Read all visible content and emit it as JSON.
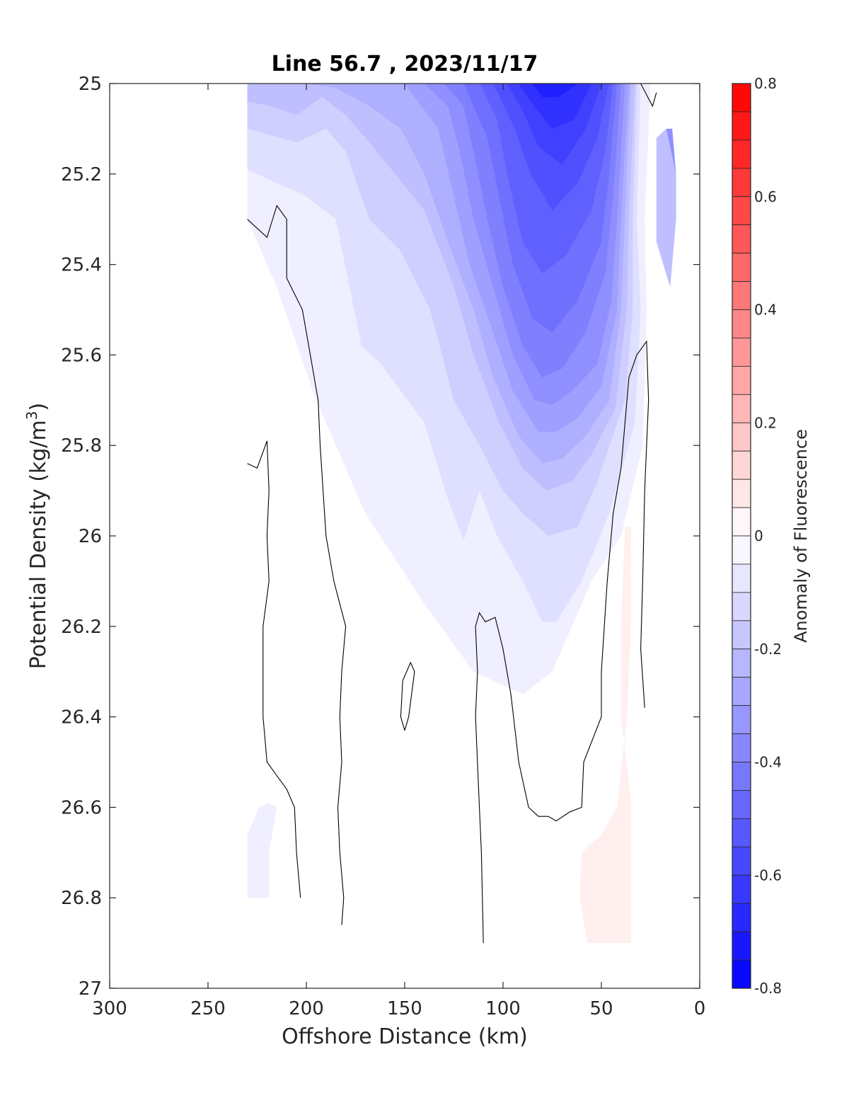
{
  "chart_data": {
    "type": "contour",
    "title": "Line 56.7 , 2023/11/17",
    "xlabel": "Offshore Distance (km)",
    "ylabel": "Potential Density (kg/m",
    "ylabel_sup": "3",
    "ylabel_close": ")",
    "xlim": [
      300,
      0
    ],
    "x_reversed": true,
    "ylim": [
      25,
      27
    ],
    "y_reversed": true,
    "x_ticks": [
      "300",
      "250",
      "200",
      "150",
      "100",
      "50",
      "0"
    ],
    "x_tick_values": [
      300,
      250,
      200,
      150,
      100,
      50,
      0
    ],
    "y_ticks": [
      "25",
      "25.2",
      "25.4",
      "25.6",
      "25.8",
      "26",
      "26.2",
      "26.4",
      "26.6",
      "26.8",
      "27"
    ],
    "y_tick_values": [
      25,
      25.2,
      25.4,
      25.6,
      25.8,
      26,
      26.2,
      26.4,
      26.6,
      26.8,
      27
    ],
    "colorbar": {
      "label": "Anomaly of Fluorescence",
      "range": [
        -0.8,
        0.8
      ],
      "step": 0.05,
      "tick_labels": [
        "0.8",
        "0.6",
        "0.4",
        "0.2",
        "0",
        "-0.2",
        "-0.4",
        "-0.6",
        "-0.8"
      ],
      "tick_values": [
        0.8,
        0.6,
        0.4,
        0.2,
        0,
        -0.2,
        -0.4,
        -0.6,
        -0.8
      ],
      "low_color": "#0000ff",
      "mid_color": "#ffffff",
      "high_color": "#ff0000"
    },
    "filled_regions": [
      {
        "level": -0.05,
        "points": [
          [
            230,
            25
          ],
          [
            25,
            25
          ],
          [
            28,
            25.3
          ],
          [
            27,
            25.5
          ],
          [
            29,
            25.8
          ],
          [
            40,
            26.0
          ],
          [
            55,
            26.1
          ],
          [
            75,
            26.3
          ],
          [
            90,
            26.35
          ],
          [
            115,
            26.3
          ],
          [
            140,
            26.15
          ],
          [
            170,
            25.95
          ],
          [
            195,
            25.7
          ],
          [
            215,
            25.45
          ],
          [
            230,
            25.3
          ]
        ]
      },
      {
        "level": -0.1,
        "points": [
          [
            230,
            25
          ],
          [
            30,
            25
          ],
          [
            32,
            25.3
          ],
          [
            30,
            25.5
          ],
          [
            33,
            25.75
          ],
          [
            46,
            25.95
          ],
          [
            60,
            26.1
          ],
          [
            73,
            26.19
          ],
          [
            80,
            26.19
          ],
          [
            90,
            26.1
          ],
          [
            103,
            26.0
          ],
          [
            112,
            25.9
          ],
          [
            120,
            26.01
          ],
          [
            128,
            25.92
          ],
          [
            140,
            25.75
          ],
          [
            162,
            25.62
          ],
          [
            172,
            25.58
          ],
          [
            185,
            25.3
          ],
          [
            200,
            25.25
          ],
          [
            220,
            25.21
          ],
          [
            230,
            25.19
          ]
        ]
      },
      {
        "level": -0.15,
        "points": [
          [
            230,
            25
          ],
          [
            32,
            25
          ],
          [
            34,
            25.3
          ],
          [
            34,
            25.5
          ],
          [
            38,
            25.7
          ],
          [
            52,
            25.88
          ],
          [
            62,
            25.98
          ],
          [
            77,
            26.0
          ],
          [
            90,
            25.95
          ],
          [
            100,
            25.9
          ],
          [
            112,
            25.8
          ],
          [
            125,
            25.7
          ],
          [
            137,
            25.5
          ],
          [
            152,
            25.37
          ],
          [
            168,
            25.3
          ],
          [
            180,
            25.15
          ],
          [
            190,
            25.1
          ],
          [
            205,
            25.13
          ],
          [
            230,
            25.1
          ]
        ]
      },
      {
        "level": -0.2,
        "points": [
          [
            230,
            25
          ],
          [
            33,
            25
          ],
          [
            36,
            25.3
          ],
          [
            37,
            25.5
          ],
          [
            43,
            25.72
          ],
          [
            55,
            25.82
          ],
          [
            65,
            25.88
          ],
          [
            78,
            25.9
          ],
          [
            90,
            25.85
          ],
          [
            102,
            25.75
          ],
          [
            115,
            25.6
          ],
          [
            125,
            25.45
          ],
          [
            140,
            25.28
          ],
          [
            155,
            25.2
          ],
          [
            168,
            25.13
          ],
          [
            180,
            25.07
          ],
          [
            192,
            25.03
          ],
          [
            205,
            25.07
          ],
          [
            218,
            25.05
          ],
          [
            230,
            25.04
          ]
        ]
      },
      {
        "level": -0.25,
        "points": [
          [
            200,
            25
          ],
          [
            35,
            25
          ],
          [
            38,
            25.3
          ],
          [
            40,
            25.5
          ],
          [
            46,
            25.7
          ],
          [
            58,
            25.78
          ],
          [
            70,
            25.83
          ],
          [
            80,
            25.84
          ],
          [
            92,
            25.78
          ],
          [
            105,
            25.65
          ],
          [
            115,
            25.5
          ],
          [
            128,
            25.35
          ],
          [
            140,
            25.2
          ],
          [
            152,
            25.1
          ],
          [
            168,
            25.05
          ],
          [
            185,
            25.01
          ]
        ]
      },
      {
        "level": -0.3,
        "points": [
          [
            150,
            25
          ],
          [
            36,
            25
          ],
          [
            40,
            25.3
          ],
          [
            42,
            25.5
          ],
          [
            50,
            25.67
          ],
          [
            62,
            25.74
          ],
          [
            73,
            25.77
          ],
          [
            82,
            25.77
          ],
          [
            95,
            25.68
          ],
          [
            105,
            25.55
          ],
          [
            117,
            25.4
          ],
          [
            125,
            25.25
          ],
          [
            133,
            25.1
          ]
        ]
      },
      {
        "level": -0.35,
        "points": [
          [
            140,
            25
          ],
          [
            38,
            25
          ],
          [
            42,
            25.3
          ],
          [
            45,
            25.48
          ],
          [
            52,
            25.62
          ],
          [
            65,
            25.68
          ],
          [
            75,
            25.71
          ],
          [
            84,
            25.7
          ],
          [
            95,
            25.6
          ],
          [
            105,
            25.45
          ],
          [
            115,
            25.3
          ],
          [
            122,
            25.15
          ],
          [
            128,
            25.05
          ]
        ]
      },
      {
        "level": -0.4,
        "points": [
          [
            130,
            25
          ],
          [
            40,
            25
          ],
          [
            44,
            25.25
          ],
          [
            48,
            25.42
          ],
          [
            58,
            25.55
          ],
          [
            70,
            25.63
          ],
          [
            80,
            25.65
          ],
          [
            90,
            25.58
          ],
          [
            100,
            25.45
          ],
          [
            108,
            25.3
          ],
          [
            115,
            25.15
          ],
          [
            120,
            25.05
          ]
        ]
      },
      {
        "level": -0.45,
        "points": [
          [
            120,
            25
          ],
          [
            42,
            25
          ],
          [
            46,
            25.2
          ],
          [
            50,
            25.35
          ],
          [
            62,
            25.48
          ],
          [
            75,
            25.55
          ],
          [
            85,
            25.52
          ],
          [
            95,
            25.4
          ],
          [
            102,
            25.25
          ],
          [
            108,
            25.12
          ]
        ]
      },
      {
        "level": -0.5,
        "points": [
          [
            112,
            25
          ],
          [
            44,
            25
          ],
          [
            48,
            25.15
          ],
          [
            55,
            25.28
          ],
          [
            68,
            25.38
          ],
          [
            80,
            25.42
          ],
          [
            90,
            25.35
          ],
          [
            98,
            25.2
          ],
          [
            103,
            25.08
          ]
        ]
      },
      {
        "level": -0.55,
        "points": [
          [
            105,
            25
          ],
          [
            46,
            25
          ],
          [
            52,
            25.12
          ],
          [
            62,
            25.22
          ],
          [
            75,
            25.28
          ],
          [
            86,
            25.2
          ],
          [
            94,
            25.1
          ]
        ]
      },
      {
        "level": -0.6,
        "points": [
          [
            98,
            25
          ],
          [
            50,
            25
          ],
          [
            58,
            25.1
          ],
          [
            70,
            25.18
          ],
          [
            82,
            25.14
          ],
          [
            90,
            25.06
          ]
        ]
      },
      {
        "level": -0.65,
        "points": [
          [
            92,
            25
          ],
          [
            55,
            25
          ],
          [
            64,
            25.08
          ],
          [
            75,
            25.1
          ],
          [
            86,
            25.04
          ]
        ]
      },
      {
        "level": -0.7,
        "points": [
          [
            85,
            25
          ],
          [
            62,
            25
          ],
          [
            72,
            25.03
          ],
          [
            80,
            25.03
          ]
        ]
      },
      {
        "level": -0.35,
        "points": [
          [
            17,
            25.1
          ],
          [
            14,
            25.1
          ],
          [
            12,
            25.2
          ],
          [
            12,
            25.3
          ],
          [
            18,
            25.32
          ]
        ]
      },
      {
        "level": -0.2,
        "points": [
          [
            22,
            25.12
          ],
          [
            17,
            25.1
          ],
          [
            12,
            25.2
          ],
          [
            12,
            25.3
          ],
          [
            15,
            25.45
          ],
          [
            22,
            25.35
          ]
        ]
      },
      {
        "level": -0.05,
        "points": [
          [
            230,
            26.8
          ],
          [
            219,
            26.8
          ],
          [
            219,
            26.7
          ],
          [
            215,
            26.6
          ],
          [
            219,
            26.59
          ],
          [
            224,
            26.6
          ],
          [
            230,
            26.66
          ]
        ]
      },
      {
        "level": 0.05,
        "points": [
          [
            60,
            26.7
          ],
          [
            50,
            26.66
          ],
          [
            42,
            26.6
          ],
          [
            37,
            26.4
          ],
          [
            35,
            26.2
          ],
          [
            35,
            25.98
          ],
          [
            38,
            25.98
          ],
          [
            40,
            26.2
          ],
          [
            40,
            26.4
          ],
          [
            35,
            26.58
          ],
          [
            35,
            26.9
          ],
          [
            57,
            26.9
          ],
          [
            61,
            26.8
          ]
        ]
      }
    ],
    "contour_lines": [
      {
        "level": 0,
        "points": [
          [
            230,
            25.3
          ],
          [
            220,
            25.34
          ],
          [
            215,
            25.27
          ],
          [
            210,
            25.3
          ],
          [
            210,
            25.43
          ],
          [
            202,
            25.5
          ],
          [
            198,
            25.6
          ],
          [
            194,
            25.7
          ],
          [
            193,
            25.8
          ],
          [
            190,
            26.0
          ],
          [
            186,
            26.1
          ],
          [
            180,
            26.2
          ],
          [
            182,
            26.3
          ],
          [
            183,
            26.4
          ],
          [
            182,
            26.5
          ],
          [
            184,
            26.6
          ],
          [
            183,
            26.7
          ],
          [
            181,
            26.8
          ],
          [
            182,
            26.86
          ]
        ]
      },
      {
        "level": 0,
        "points": [
          [
            230,
            25.84
          ],
          [
            225,
            25.85
          ],
          [
            220,
            25.79
          ],
          [
            219,
            25.9
          ],
          [
            220,
            26.0
          ],
          [
            219,
            26.1
          ],
          [
            222,
            26.2
          ],
          [
            222,
            26.4
          ],
          [
            220,
            26.5
          ],
          [
            215,
            26.53
          ],
          [
            210,
            26.56
          ],
          [
            206,
            26.6
          ],
          [
            205,
            26.7
          ],
          [
            203,
            26.8
          ]
        ]
      },
      {
        "level": 0,
        "points": [
          [
            150,
            26.43
          ],
          [
            152,
            26.4
          ],
          [
            151,
            26.32
          ],
          [
            147,
            26.28
          ],
          [
            145,
            26.3
          ],
          [
            148,
            26.4
          ],
          [
            150,
            26.43
          ]
        ]
      },
      {
        "level": 0,
        "points": [
          [
            110,
            26.9
          ],
          [
            111,
            26.7
          ],
          [
            112,
            26.6
          ],
          [
            114,
            26.4
          ],
          [
            113,
            26.3
          ],
          [
            114,
            26.2
          ],
          [
            112,
            26.17
          ],
          [
            109,
            26.19
          ],
          [
            104,
            26.18
          ],
          [
            100,
            26.25
          ],
          [
            96,
            26.35
          ],
          [
            92,
            26.5
          ],
          [
            87,
            26.6
          ],
          [
            82,
            26.62
          ],
          [
            77,
            26.62
          ],
          [
            73,
            26.63
          ],
          [
            66,
            26.61
          ],
          [
            60,
            26.6
          ],
          [
            59,
            26.5
          ],
          [
            50,
            26.4
          ],
          [
            50,
            26.3
          ],
          [
            47,
            26.1
          ],
          [
            44,
            25.95
          ],
          [
            40,
            25.85
          ],
          [
            38,
            25.75
          ],
          [
            36,
            25.65
          ],
          [
            32,
            25.6
          ],
          [
            27,
            25.57
          ],
          [
            26,
            25.7
          ],
          [
            27,
            25.8
          ],
          [
            28,
            25.9
          ],
          [
            29,
            26.1
          ],
          [
            30,
            26.25
          ],
          [
            28,
            26.38
          ]
        ]
      },
      {
        "level": 0,
        "points": [
          [
            30,
            25
          ],
          [
            24,
            25.05
          ],
          [
            22,
            25.02
          ]
        ]
      }
    ]
  }
}
